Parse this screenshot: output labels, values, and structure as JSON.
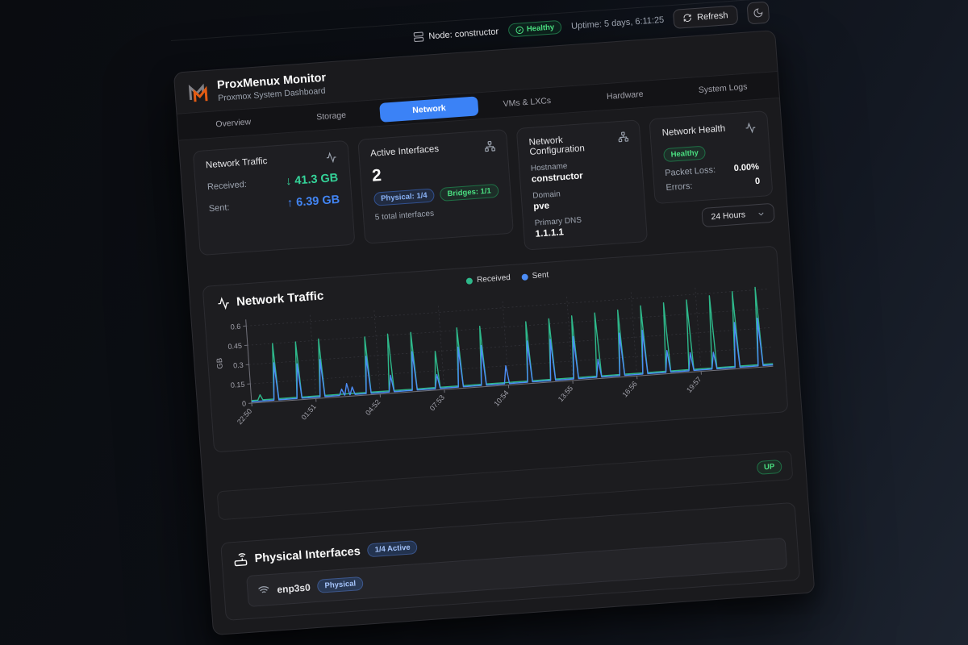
{
  "utility_bar": {
    "node_label": "Node: constructor",
    "health_badge": "Healthy",
    "uptime": "Uptime: 5 days, 6:11:25",
    "refresh_label": "Refresh"
  },
  "header": {
    "title": "ProxMenux Monitor",
    "subtitle": "Proxmox System Dashboard"
  },
  "tabs": [
    {
      "label": "Overview",
      "active": false
    },
    {
      "label": "Storage",
      "active": false
    },
    {
      "label": "Network",
      "active": true
    },
    {
      "label": "VMs & LXCs",
      "active": false
    },
    {
      "label": "Hardware",
      "active": false
    },
    {
      "label": "System Logs",
      "active": false
    }
  ],
  "cards": {
    "traffic": {
      "title": "Network Traffic",
      "received_label": "Received:",
      "received_value": "↓ 41.3 GB",
      "sent_label": "Sent:",
      "sent_value": "↑ 6.39 GB"
    },
    "interfaces": {
      "title": "Active Interfaces",
      "count": "2",
      "physical_badge": "Physical: 1/4",
      "bridges_badge": "Bridges: 1/1",
      "total": "5 total interfaces"
    },
    "config": {
      "title": "Network Configuration",
      "hostname_label": "Hostname",
      "hostname": "constructor",
      "domain_label": "Domain",
      "domain": "pve",
      "dns_label": "Primary DNS",
      "dns": "1.1.1.1"
    },
    "health": {
      "title": "Network Health",
      "status": "Healthy",
      "packet_loss_label": "Packet Loss:",
      "packet_loss": "0.00%",
      "errors_label": "Errors:",
      "errors": "0"
    }
  },
  "time_range": {
    "selected": "24 Hours"
  },
  "chart": {
    "title": "Network Traffic"
  },
  "chart_data": {
    "type": "line",
    "title": "Network Traffic",
    "ylabel": "GB",
    "ylim": [
      0,
      0.65
    ],
    "yticks": [
      0,
      0.15,
      0.3,
      0.45,
      0.6
    ],
    "ytick_labels": [
      "0",
      "0.15",
      "0.3",
      "0.45",
      "0.6"
    ],
    "x_range_minutes": [
      0,
      1470
    ],
    "xticks_minutes": [
      0,
      181,
      362,
      543,
      724,
      905,
      1086,
      1267
    ],
    "xtick_labels": [
      "22:50",
      "01:51",
      "04:52",
      "07:53",
      "10:54",
      "13:55",
      "16:56",
      "19:57"
    ],
    "grid": "dotted",
    "legend_position": "top-center",
    "series": [
      {
        "name": "Received",
        "color": "#2eb88a",
        "baseline_gb": 0.02,
        "spikes": [
          {
            "t": 25,
            "v": 0.06
          },
          {
            "t": 70,
            "v": 0.45
          },
          {
            "t": 135,
            "v": 0.45
          },
          {
            "t": 200,
            "v": 0.46
          },
          {
            "t": 330,
            "v": 0.45
          },
          {
            "t": 395,
            "v": 0.46
          },
          {
            "t": 460,
            "v": 0.46
          },
          {
            "t": 525,
            "v": 0.3
          },
          {
            "t": 590,
            "v": 0.47
          },
          {
            "t": 655,
            "v": 0.47
          },
          {
            "t": 785,
            "v": 0.48
          },
          {
            "t": 850,
            "v": 0.49
          },
          {
            "t": 915,
            "v": 0.5
          },
          {
            "t": 980,
            "v": 0.51
          },
          {
            "t": 1045,
            "v": 0.52
          },
          {
            "t": 1110,
            "v": 0.54
          },
          {
            "t": 1175,
            "v": 0.55
          },
          {
            "t": 1240,
            "v": 0.56
          },
          {
            "t": 1305,
            "v": 0.58
          },
          {
            "t": 1370,
            "v": 0.6
          },
          {
            "t": 1435,
            "v": 0.62
          }
        ]
      },
      {
        "name": "Sent",
        "color": "#4c8df6",
        "baseline_gb": 0.011,
        "spikes": [
          {
            "t": 70,
            "v": 0.3
          },
          {
            "t": 135,
            "v": 0.28
          },
          {
            "t": 200,
            "v": 0.3
          },
          {
            "t": 255,
            "v": 0.06
          },
          {
            "t": 270,
            "v": 0.1
          },
          {
            "t": 285,
            "v": 0.07
          },
          {
            "t": 330,
            "v": 0.3
          },
          {
            "t": 395,
            "v": 0.14
          },
          {
            "t": 460,
            "v": 0.31
          },
          {
            "t": 525,
            "v": 0.12
          },
          {
            "t": 590,
            "v": 0.32
          },
          {
            "t": 655,
            "v": 0.32
          },
          {
            "t": 720,
            "v": 0.15
          },
          {
            "t": 785,
            "v": 0.33
          },
          {
            "t": 850,
            "v": 0.33
          },
          {
            "t": 915,
            "v": 0.34
          },
          {
            "t": 980,
            "v": 0.15
          },
          {
            "t": 1045,
            "v": 0.34
          },
          {
            "t": 1110,
            "v": 0.35
          },
          {
            "t": 1175,
            "v": 0.18
          },
          {
            "t": 1240,
            "v": 0.15
          },
          {
            "t": 1305,
            "v": 0.14
          },
          {
            "t": 1370,
            "v": 0.36
          },
          {
            "t": 1435,
            "v": 0.38
          }
        ]
      }
    ]
  },
  "status_row": {
    "badge": "UP"
  },
  "physical_section": {
    "title": "Physical Interfaces",
    "active_badge": "1/4 Active",
    "interfaces": [
      {
        "name": "enp3s0",
        "type_badge": "Physical"
      }
    ]
  }
}
